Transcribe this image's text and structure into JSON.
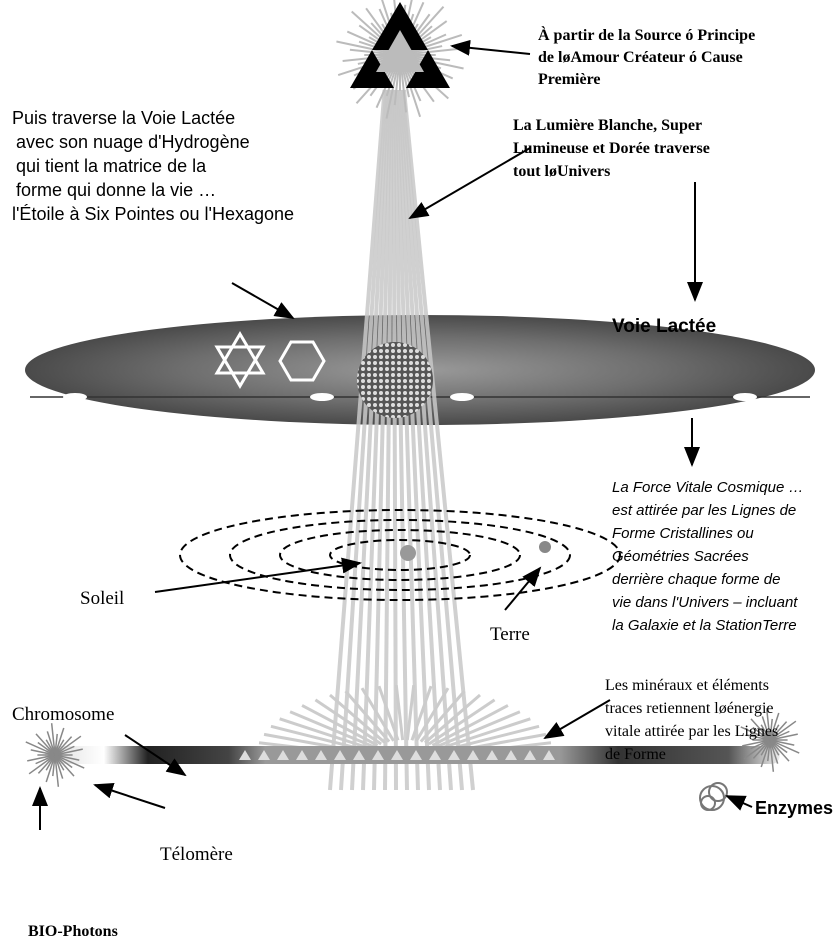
{
  "labels": {
    "source": {
      "lines": [
        "À partir de la Source ó Principe",
        "de løAmour Créateur ó Cause",
        "Première"
      ]
    },
    "light": {
      "lines": [
        "La Lumière Blanche, Super",
        "Lumineuse et Dorée traverse",
        "tout løUnivers"
      ]
    },
    "milky_way_intro": {
      "lines": [
        "Puis traverse la Voie Lactée",
        "avec son nuage d'Hydrogène",
        "qui tient la matrice de la",
        "forme qui donne la vie …",
        "l'Étoile à Six Pointes ou l'Hexagone"
      ]
    },
    "voie_lactee": {
      "lines": [
        "Voie Lactée"
      ]
    },
    "force_vitale": {
      "lines": [
        "La Force Vitale Cosmique …",
        "est attirée par les Lignes de",
        "Forme Cristallines ou",
        "Géométries Sacrées",
        "derrière chaque forme de",
        "vie dans l'Univers – incluant",
        "la Galaxie et la StationTerre"
      ]
    },
    "soleil": {
      "lines": [
        "Soleil"
      ]
    },
    "terre": {
      "lines": [
        "Terre"
      ]
    },
    "mineraux": {
      "lines": [
        "Les minéraux et éléments",
        "traces retiennent løénergie",
        "vitale attirée par les Lignes",
        "de Forme"
      ]
    },
    "chromosome": {
      "lines": [
        "Chromosome"
      ]
    },
    "telomere": {
      "lines": [
        "Télomère"
      ]
    },
    "bio_photons": {
      "lines": [
        "BIO-Photons"
      ]
    },
    "enzymes": {
      "lines": [
        "Enzymes"
      ]
    }
  }
}
